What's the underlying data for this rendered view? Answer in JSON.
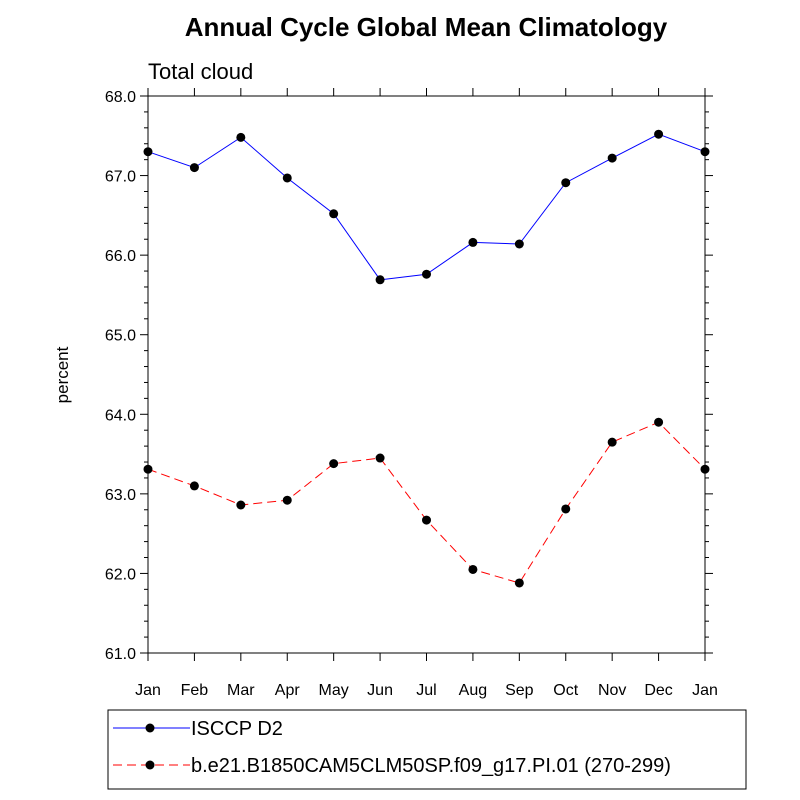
{
  "chart_data": {
    "type": "line",
    "title": "Annual Cycle Global Mean Climatology",
    "subtitle": "Total cloud",
    "xlabel": "",
    "ylabel": "percent",
    "ylim": [
      61.0,
      68.0
    ],
    "yticks": [
      "61.0",
      "62.0",
      "63.0",
      "64.0",
      "65.0",
      "66.0",
      "67.0",
      "68.0"
    ],
    "categories": [
      "Jan",
      "Feb",
      "Mar",
      "Apr",
      "May",
      "Jun",
      "Jul",
      "Aug",
      "Sep",
      "Oct",
      "Nov",
      "Dec",
      "Jan"
    ],
    "grid": false,
    "legend_position": "bottom",
    "series": [
      {
        "name": "ISCCP D2",
        "color": "#0000ff",
        "dash": "solid",
        "values": [
          67.3,
          67.1,
          67.48,
          66.97,
          66.52,
          65.69,
          65.76,
          66.16,
          66.14,
          66.91,
          67.22,
          67.52,
          67.3
        ]
      },
      {
        "name": "b.e21.B1850CAM5CLM50SP.f09_g17.PI.01 (270-299)",
        "color": "#ff0000",
        "dash": "dashed",
        "values": [
          63.31,
          63.1,
          62.86,
          62.92,
          63.38,
          63.45,
          62.67,
          62.05,
          61.88,
          62.81,
          63.65,
          63.9,
          63.31
        ]
      }
    ]
  }
}
